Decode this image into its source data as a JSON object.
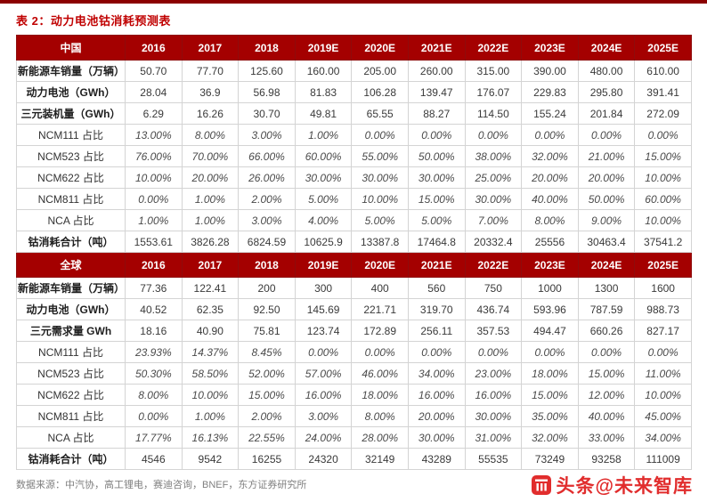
{
  "page": {
    "title": "表 2：动力电池钴消耗预测表",
    "footer": "数据来源：中汽协，高工锂电，赛迪咨询，BNEF，东方证券研究所",
    "watermark": "头条@未来智库"
  },
  "colors": {
    "header_bg": "#A40000",
    "title_red": "#C00000",
    "top_rule": "#8B0000",
    "watermark_red": "#E12D2D"
  },
  "table": {
    "years": [
      "2016",
      "2017",
      "2018",
      "2019E",
      "2020E",
      "2021E",
      "2022E",
      "2023E",
      "2024E",
      "2025E"
    ],
    "sections": [
      {
        "header": "中国",
        "rows": [
          {
            "label": "新能源车销量（万辆）",
            "bold": true,
            "italic": false,
            "values": [
              "50.70",
              "77.70",
              "125.60",
              "160.00",
              "205.00",
              "260.00",
              "315.00",
              "390.00",
              "480.00",
              "610.00"
            ]
          },
          {
            "label": "动力电池（GWh）",
            "bold": true,
            "italic": false,
            "values": [
              "28.04",
              "36.9",
              "56.98",
              "81.83",
              "106.28",
              "139.47",
              "176.07",
              "229.83",
              "295.80",
              "391.41"
            ]
          },
          {
            "label": "三元装机量（GWh）",
            "bold": true,
            "italic": false,
            "values": [
              "6.29",
              "16.26",
              "30.70",
              "49.81",
              "65.55",
              "88.27",
              "114.50",
              "155.24",
              "201.84",
              "272.09"
            ]
          },
          {
            "label": "NCM111 占比",
            "bold": false,
            "italic": true,
            "values": [
              "13.00%",
              "8.00%",
              "3.00%",
              "1.00%",
              "0.00%",
              "0.00%",
              "0.00%",
              "0.00%",
              "0.00%",
              "0.00%"
            ]
          },
          {
            "label": "NCM523 占比",
            "bold": false,
            "italic": true,
            "values": [
              "76.00%",
              "70.00%",
              "66.00%",
              "60.00%",
              "55.00%",
              "50.00%",
              "38.00%",
              "32.00%",
              "21.00%",
              "15.00%"
            ]
          },
          {
            "label": "NCM622 占比",
            "bold": false,
            "italic": true,
            "values": [
              "10.00%",
              "20.00%",
              "26.00%",
              "30.00%",
              "30.00%",
              "30.00%",
              "25.00%",
              "20.00%",
              "20.00%",
              "10.00%"
            ]
          },
          {
            "label": "NCM811 占比",
            "bold": false,
            "italic": true,
            "values": [
              "0.00%",
              "1.00%",
              "2.00%",
              "5.00%",
              "10.00%",
              "15.00%",
              "30.00%",
              "40.00%",
              "50.00%",
              "60.00%"
            ]
          },
          {
            "label": "NCA 占比",
            "bold": false,
            "italic": true,
            "values": [
              "1.00%",
              "1.00%",
              "3.00%",
              "4.00%",
              "5.00%",
              "5.00%",
              "7.00%",
              "8.00%",
              "9.00%",
              "10.00%"
            ]
          },
          {
            "label": "钴消耗合计（吨）",
            "bold": true,
            "italic": false,
            "values": [
              "1553.61",
              "3826.28",
              "6824.59",
              "10625.9",
              "13387.8",
              "17464.8",
              "20332.4",
              "25556",
              "30463.4",
              "37541.2"
            ]
          }
        ]
      },
      {
        "header": "全球",
        "rows": [
          {
            "label": "新能源车销量（万辆）",
            "bold": true,
            "italic": false,
            "values": [
              "77.36",
              "122.41",
              "200",
              "300",
              "400",
              "560",
              "750",
              "1000",
              "1300",
              "1600"
            ]
          },
          {
            "label": "动力电池（GWh）",
            "bold": true,
            "italic": false,
            "values": [
              "40.52",
              "62.35",
              "92.50",
              "145.69",
              "221.71",
              "319.70",
              "436.74",
              "593.96",
              "787.59",
              "988.73"
            ]
          },
          {
            "label": "三元需求量 GWh",
            "bold": true,
            "italic": false,
            "values": [
              "18.16",
              "40.90",
              "75.81",
              "123.74",
              "172.89",
              "256.11",
              "357.53",
              "494.47",
              "660.26",
              "827.17"
            ]
          },
          {
            "label": "NCM111 占比",
            "bold": false,
            "italic": true,
            "values": [
              "23.93%",
              "14.37%",
              "8.45%",
              "0.00%",
              "0.00%",
              "0.00%",
              "0.00%",
              "0.00%",
              "0.00%",
              "0.00%"
            ]
          },
          {
            "label": "NCM523 占比",
            "bold": false,
            "italic": true,
            "values": [
              "50.30%",
              "58.50%",
              "52.00%",
              "57.00%",
              "46.00%",
              "34.00%",
              "23.00%",
              "18.00%",
              "15.00%",
              "11.00%"
            ]
          },
          {
            "label": "NCM622 占比",
            "bold": false,
            "italic": true,
            "values": [
              "8.00%",
              "10.00%",
              "15.00%",
              "16.00%",
              "18.00%",
              "16.00%",
              "16.00%",
              "15.00%",
              "12.00%",
              "10.00%"
            ]
          },
          {
            "label": "NCM811 占比",
            "bold": false,
            "italic": true,
            "values": [
              "0.00%",
              "1.00%",
              "2.00%",
              "3.00%",
              "8.00%",
              "20.00%",
              "30.00%",
              "35.00%",
              "40.00%",
              "45.00%"
            ]
          },
          {
            "label": "NCA 占比",
            "bold": false,
            "italic": true,
            "values": [
              "17.77%",
              "16.13%",
              "22.55%",
              "24.00%",
              "28.00%",
              "30.00%",
              "31.00%",
              "32.00%",
              "33.00%",
              "34.00%"
            ]
          },
          {
            "label": "钴消耗合计（吨）",
            "bold": true,
            "italic": false,
            "values": [
              "4546",
              "9542",
              "16255",
              "24320",
              "32149",
              "43289",
              "55535",
              "73249",
              "93258",
              "111009"
            ]
          }
        ]
      }
    ]
  }
}
